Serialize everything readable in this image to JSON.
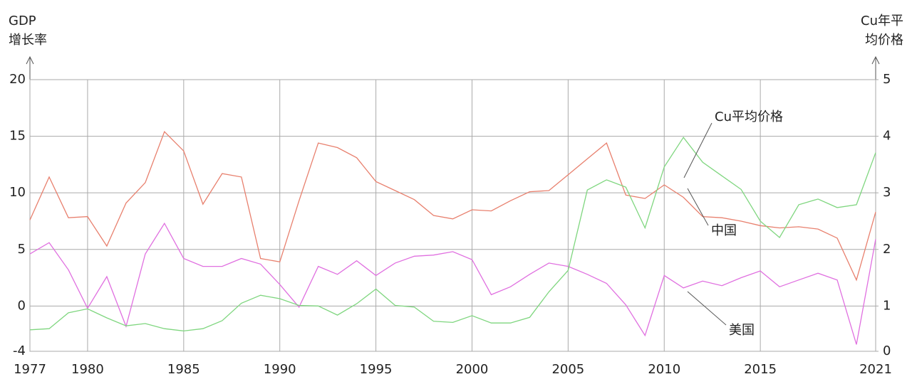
{
  "chart_data": {
    "type": "line",
    "ylabel": [
      "GDP",
      "增长率"
    ],
    "y2label": [
      "Cu年平",
      "均价格"
    ],
    "x": [
      1977,
      1978,
      1979,
      1980,
      1981,
      1982,
      1983,
      1984,
      1985,
      1986,
      1987,
      1988,
      1989,
      1990,
      1991,
      1992,
      1993,
      1994,
      1995,
      1996,
      1997,
      1998,
      1999,
      2000,
      2001,
      2002,
      2003,
      2004,
      2005,
      2006,
      2007,
      2008,
      2009,
      2010,
      2011,
      2012,
      2013,
      2014,
      2015,
      2016,
      2017,
      2018,
      2019,
      2020,
      2021
    ],
    "xlim": [
      1977,
      2021
    ],
    "xticks": [
      1977,
      1980,
      1985,
      1990,
      1995,
      2000,
      2005,
      2010,
      2015,
      2021
    ],
    "ylim": [
      -4,
      20
    ],
    "yticks": [
      -4,
      0,
      5,
      10,
      15,
      20
    ],
    "y2lim": [
      0.2,
      5
    ],
    "y2ticks": [
      {
        "value": 0.2,
        "label": "0"
      },
      1,
      2,
      3,
      4,
      5
    ],
    "grid": true,
    "series": [
      {
        "name": "中国",
        "color": "#e8806e",
        "values": [
          7.6,
          11.4,
          7.8,
          7.9,
          5.3,
          9.1,
          10.9,
          15.4,
          13.7,
          9.0,
          11.7,
          11.4,
          4.2,
          3.9,
          9.3,
          14.4,
          14.0,
          13.1,
          11.0,
          10.2,
          9.4,
          8.0,
          7.7,
          8.5,
          8.4,
          9.3,
          10.1,
          10.2,
          11.6,
          13.0,
          14.4,
          9.8,
          9.5,
          10.7,
          9.6,
          7.9,
          7.8,
          7.5,
          7.1,
          6.9,
          7.0,
          6.8,
          6.0,
          2.3,
          8.3
        ]
      },
      {
        "name": "美国",
        "color": "#e070e0",
        "values": [
          4.6,
          5.6,
          3.2,
          -0.2,
          2.6,
          -1.8,
          4.6,
          7.3,
          4.2,
          3.5,
          3.5,
          4.2,
          3.7,
          1.9,
          -0.1,
          3.5,
          2.8,
          4.0,
          2.7,
          3.8,
          4.4,
          4.5,
          4.8,
          4.1,
          1.0,
          1.7,
          2.8,
          3.8,
          3.5,
          2.8,
          2.0,
          0.1,
          -2.6,
          2.7,
          1.6,
          2.2,
          1.8,
          2.5,
          3.1,
          1.7,
          2.3,
          2.9,
          2.3,
          -3.4,
          5.9
        ]
      },
      {
        "name": "Cu平均价格",
        "color": "#7fd67f",
        "axis": "y2",
        "values": [
          0.58,
          0.6,
          0.88,
          0.95,
          0.79,
          0.65,
          0.69,
          0.6,
          0.56,
          0.6,
          0.74,
          1.05,
          1.19,
          1.13,
          1.01,
          1.0,
          0.84,
          1.04,
          1.3,
          1.01,
          0.98,
          0.73,
          0.71,
          0.83,
          0.7,
          0.7,
          0.8,
          1.25,
          1.63,
          3.05,
          3.23,
          3.1,
          2.38,
          3.46,
          3.98,
          3.54,
          3.3,
          3.06,
          2.5,
          2.21,
          2.79,
          2.89,
          2.74,
          2.79,
          3.71
        ]
      }
    ]
  }
}
